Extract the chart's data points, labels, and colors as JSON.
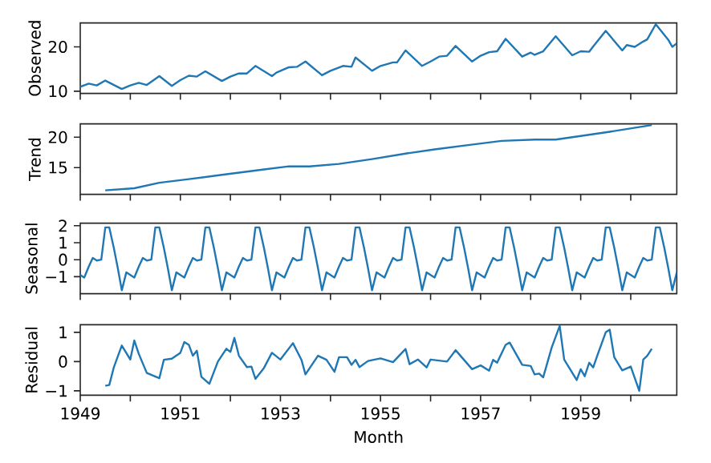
{
  "chart_data": [
    {
      "type": "line",
      "ylabel": "Observed",
      "color": "#1f77b4",
      "tick_labels": "y",
      "x": [
        1949.0,
        1949.17,
        1949.33,
        1949.5,
        1949.83,
        1950.0,
        1950.17,
        1950.33,
        1950.58,
        1950.83,
        1951.0,
        1951.17,
        1951.33,
        1951.5,
        1951.83,
        1952.0,
        1952.17,
        1952.33,
        1952.5,
        1952.83,
        1952.92,
        1953.17,
        1953.33,
        1953.5,
        1953.83,
        1954.0,
        1954.25,
        1954.42,
        1954.5,
        1954.83,
        1955.0,
        1955.25,
        1955.33,
        1955.5,
        1955.83,
        1956.0,
        1956.17,
        1956.33,
        1956.5,
        1956.83,
        1957.0,
        1957.17,
        1957.33,
        1957.5,
        1957.83,
        1958.0,
        1958.08,
        1958.25,
        1958.5,
        1958.83,
        1959.0,
        1959.17,
        1959.25,
        1959.5,
        1959.83,
        1959.92,
        1960.08,
        1960.25,
        1960.33,
        1960.5,
        1960.75,
        1960.83,
        1960.92
      ],
      "values": [
        11.0,
        11.7,
        11.3,
        12.4,
        10.5,
        11.3,
        11.9,
        11.4,
        13.4,
        11.2,
        12.5,
        13.5,
        13.3,
        14.5,
        12.3,
        13.3,
        14.0,
        14.0,
        15.7,
        13.4,
        14.2,
        15.4,
        15.5,
        16.7,
        13.6,
        14.6,
        15.7,
        15.5,
        17.6,
        14.6,
        15.7,
        16.5,
        16.5,
        19.2,
        15.7,
        16.7,
        17.8,
        18.0,
        20.2,
        16.7,
        18.0,
        18.8,
        19.0,
        21.8,
        17.8,
        18.7,
        18.2,
        19.0,
        22.4,
        18.1,
        19.0,
        18.9,
        20.1,
        23.6,
        19.2,
        20.4,
        20.0,
        21.2,
        21.7,
        25.1,
        21.6,
        20.0,
        20.8
      ],
      "xlim": [
        1949.0,
        1960.92
      ],
      "ylim": [
        9.5,
        25.4
      ],
      "yticks": [
        10,
        20
      ],
      "xticks": [
        {
          "value": 1949,
          "label": null
        },
        {
          "value": 1950,
          "label": null
        },
        {
          "value": 1951,
          "label": null
        },
        {
          "value": 1952,
          "label": null
        },
        {
          "value": 1953,
          "label": null
        },
        {
          "value": 1954,
          "label": null
        },
        {
          "value": 1955,
          "label": null
        },
        {
          "value": 1956,
          "label": null
        },
        {
          "value": 1957,
          "label": null
        },
        {
          "value": 1958,
          "label": null
        },
        {
          "value": 1959,
          "label": null
        },
        {
          "value": 1960,
          "label": null
        }
      ]
    },
    {
      "type": "line",
      "ylabel": "Trend",
      "color": "#1f77b4",
      "tick_labels": "y",
      "x": [
        1949.5,
        1950.08,
        1950.58,
        1951.17,
        1951.83,
        1952.58,
        1953.17,
        1953.58,
        1954.17,
        1954.83,
        1955.5,
        1956.08,
        1956.75,
        1957.42,
        1958.08,
        1958.5,
        1959.0,
        1959.58,
        1960.42
      ],
      "values": [
        11.25,
        11.6,
        12.5,
        13.1,
        13.8,
        14.6,
        15.2,
        15.2,
        15.6,
        16.4,
        17.3,
        18.0,
        18.7,
        19.4,
        19.6,
        19.6,
        20.2,
        20.9,
        22.0
      ],
      "xlim": [
        1949.0,
        1960.92
      ],
      "ylim": [
        10.6,
        22.2
      ],
      "yticks": [
        15,
        20
      ],
      "xticks": [
        {
          "value": 1949,
          "label": null
        },
        {
          "value": 1950,
          "label": null
        },
        {
          "value": 1951,
          "label": null
        },
        {
          "value": 1952,
          "label": null
        },
        {
          "value": 1953,
          "label": null
        },
        {
          "value": 1954,
          "label": null
        },
        {
          "value": 1955,
          "label": null
        },
        {
          "value": 1956,
          "label": null
        },
        {
          "value": 1957,
          "label": null
        },
        {
          "value": 1958,
          "label": null
        },
        {
          "value": 1959,
          "label": null
        },
        {
          "value": 1960,
          "label": null
        }
      ]
    },
    {
      "type": "line",
      "ylabel": "Seasonal",
      "color": "#1f77b4",
      "tick_labels": "y",
      "x": [
        1949.0,
        1949.08,
        1949.17,
        1949.25,
        1949.33,
        1949.42,
        1949.5,
        1949.58,
        1949.67,
        1949.75,
        1949.83,
        1949.92,
        1950.0,
        1950.08,
        1950.17,
        1950.25,
        1950.33,
        1950.42,
        1950.5,
        1950.58,
        1950.67,
        1950.75,
        1950.83,
        1950.92,
        1951.0,
        1951.08,
        1951.17,
        1951.25,
        1951.33,
        1951.42,
        1951.5,
        1951.58,
        1951.67,
        1951.75,
        1951.83,
        1951.92,
        1952.0,
        1952.08,
        1952.17,
        1952.25,
        1952.33,
        1952.42,
        1952.5,
        1952.58,
        1952.67,
        1952.75,
        1952.83,
        1952.92,
        1953.0,
        1953.08,
        1953.17,
        1953.25,
        1953.33,
        1953.42,
        1953.5,
        1953.58,
        1953.67,
        1953.75,
        1953.83,
        1953.92,
        1954.0,
        1954.08,
        1954.17,
        1954.25,
        1954.33,
        1954.42,
        1954.5,
        1954.58,
        1954.67,
        1954.75,
        1954.83,
        1954.92,
        1955.0,
        1955.08,
        1955.17,
        1955.25,
        1955.33,
        1955.42,
        1955.5,
        1955.58,
        1955.67,
        1955.75,
        1955.83,
        1955.92,
        1956.0,
        1956.08,
        1956.17,
        1956.25,
        1956.33,
        1956.42,
        1956.5,
        1956.58,
        1956.67,
        1956.75,
        1956.83,
        1956.92,
        1957.0,
        1957.08,
        1957.17,
        1957.25,
        1957.33,
        1957.42,
        1957.5,
        1957.58,
        1957.67,
        1957.75,
        1957.83,
        1957.92,
        1958.0,
        1958.08,
        1958.17,
        1958.25,
        1958.33,
        1958.42,
        1958.5,
        1958.58,
        1958.67,
        1958.75,
        1958.83,
        1958.92,
        1959.0,
        1959.08,
        1959.17,
        1959.25,
        1959.33,
        1959.42,
        1959.5,
        1959.58,
        1959.67,
        1959.75,
        1959.83,
        1959.92,
        1960.0,
        1960.08,
        1960.17,
        1960.25,
        1960.33,
        1960.42,
        1960.5,
        1960.58,
        1960.67,
        1960.75,
        1960.83,
        1960.92
      ],
      "values": [
        -0.9,
        -1.05,
        -0.4,
        0.1,
        -0.05,
        0.0,
        1.9,
        1.9,
        0.7,
        -0.5,
        -1.8,
        -0.75,
        -0.9,
        -1.05,
        -0.4,
        0.1,
        -0.05,
        0.0,
        1.9,
        1.9,
        0.7,
        -0.5,
        -1.8,
        -0.75,
        -0.9,
        -1.05,
        -0.4,
        0.1,
        -0.05,
        0.0,
        1.9,
        1.9,
        0.7,
        -0.5,
        -1.8,
        -0.75,
        -0.9,
        -1.05,
        -0.4,
        0.1,
        -0.05,
        0.0,
        1.9,
        1.9,
        0.7,
        -0.5,
        -1.8,
        -0.75,
        -0.9,
        -1.05,
        -0.4,
        0.1,
        -0.05,
        0.0,
        1.9,
        1.9,
        0.7,
        -0.5,
        -1.8,
        -0.75,
        -0.9,
        -1.05,
        -0.4,
        0.1,
        -0.05,
        0.0,
        1.9,
        1.9,
        0.7,
        -0.5,
        -1.8,
        -0.75,
        -0.9,
        -1.05,
        -0.4,
        0.1,
        -0.05,
        0.0,
        1.9,
        1.9,
        0.7,
        -0.5,
        -1.8,
        -0.75,
        -0.9,
        -1.05,
        -0.4,
        0.1,
        -0.05,
        0.0,
        1.9,
        1.9,
        0.7,
        -0.5,
        -1.8,
        -0.75,
        -0.9,
        -1.05,
        -0.4,
        0.1,
        -0.05,
        0.0,
        1.9,
        1.9,
        0.7,
        -0.5,
        -1.8,
        -0.75,
        -0.9,
        -1.05,
        -0.4,
        0.1,
        -0.05,
        0.0,
        1.9,
        1.9,
        0.7,
        -0.5,
        -1.8,
        -0.75,
        -0.9,
        -1.05,
        -0.4,
        0.1,
        -0.05,
        0.0,
        1.9,
        1.9,
        0.7,
        -0.5,
        -1.8,
        -0.75,
        -0.9,
        -1.05,
        -0.4,
        0.1,
        -0.05,
        0.0,
        1.9,
        1.9,
        0.7,
        -0.5,
        -1.8,
        -0.75
      ],
      "xlim": [
        1949.0,
        1960.92
      ],
      "ylim": [
        -2.0,
        2.15
      ],
      "yticks": [
        {
          "value": -1,
          "label": "−1"
        },
        0,
        1,
        2
      ],
      "xticks": [
        {
          "value": 1949,
          "label": null
        },
        {
          "value": 1950,
          "label": null
        },
        {
          "value": 1951,
          "label": null
        },
        {
          "value": 1952,
          "label": null
        },
        {
          "value": 1953,
          "label": null
        },
        {
          "value": 1954,
          "label": null
        },
        {
          "value": 1955,
          "label": null
        },
        {
          "value": 1956,
          "label": null
        },
        {
          "value": 1957,
          "label": null
        },
        {
          "value": 1958,
          "label": null
        },
        {
          "value": 1959,
          "label": null
        },
        {
          "value": 1960,
          "label": null
        }
      ]
    },
    {
      "type": "line",
      "ylabel": "Residual",
      "xlabel": "Month",
      "color": "#1f77b4",
      "x": [
        1949.5,
        1949.58,
        1949.67,
        1949.83,
        1950.0,
        1950.08,
        1950.17,
        1950.33,
        1950.58,
        1950.67,
        1950.83,
        1951.0,
        1951.08,
        1951.17,
        1951.25,
        1951.33,
        1951.42,
        1951.58,
        1951.75,
        1951.92,
        1952.0,
        1952.08,
        1952.17,
        1952.33,
        1952.42,
        1952.5,
        1952.67,
        1952.83,
        1953.0,
        1953.25,
        1953.42,
        1953.5,
        1953.75,
        1953.92,
        1954.08,
        1954.17,
        1954.33,
        1954.42,
        1954.5,
        1954.58,
        1954.75,
        1955.0,
        1955.25,
        1955.5,
        1955.58,
        1955.75,
        1955.92,
        1956.0,
        1956.33,
        1956.5,
        1956.83,
        1957.0,
        1957.17,
        1957.25,
        1957.33,
        1957.5,
        1957.58,
        1957.83,
        1958.0,
        1958.08,
        1958.17,
        1958.25,
        1958.42,
        1958.58,
        1958.67,
        1958.92,
        1959.0,
        1959.08,
        1959.17,
        1959.25,
        1959.33,
        1959.5,
        1959.58,
        1959.67,
        1959.83,
        1960.0,
        1960.17,
        1960.25,
        1960.33,
        1960.42
      ],
      "values": [
        -0.83,
        -0.8,
        -0.2,
        0.55,
        0.07,
        0.72,
        0.26,
        -0.39,
        -0.57,
        0.06,
        0.1,
        0.3,
        0.67,
        0.57,
        0.2,
        0.37,
        -0.52,
        -0.76,
        0.0,
        0.44,
        0.33,
        0.81,
        0.2,
        -0.19,
        -0.17,
        -0.59,
        -0.22,
        0.3,
        0.07,
        0.63,
        0.06,
        -0.44,
        0.2,
        0.06,
        -0.35,
        0.15,
        0.15,
        -0.11,
        0.06,
        -0.19,
        0.02,
        0.11,
        -0.02,
        0.43,
        -0.09,
        0.07,
        -0.2,
        0.07,
        0.0,
        0.39,
        -0.26,
        -0.13,
        -0.31,
        0.06,
        -0.04,
        0.57,
        0.65,
        -0.11,
        -0.15,
        -0.44,
        -0.41,
        -0.54,
        0.48,
        1.22,
        0.07,
        -0.63,
        -0.26,
        -0.5,
        -0.04,
        -0.2,
        0.2,
        1.0,
        1.09,
        0.15,
        -0.3,
        -0.17,
        -1.0,
        0.07,
        0.2,
        0.44
      ],
      "xlim": [
        1949.0,
        1960.92
      ],
      "ylim": [
        -1.15,
        1.26
      ],
      "yticks": [
        {
          "value": -1,
          "label": "−1"
        },
        0,
        1
      ],
      "xticks": [
        1949,
        {
          "value": 1950,
          "label": null
        },
        1951,
        {
          "value": 1952,
          "label": null
        },
        1953,
        {
          "value": 1954,
          "label": null
        },
        1955,
        {
          "value": 1956,
          "label": null
        },
        1957,
        {
          "value": 1958,
          "label": null
        },
        1959,
        {
          "value": 1960,
          "label": null
        }
      ]
    }
  ]
}
